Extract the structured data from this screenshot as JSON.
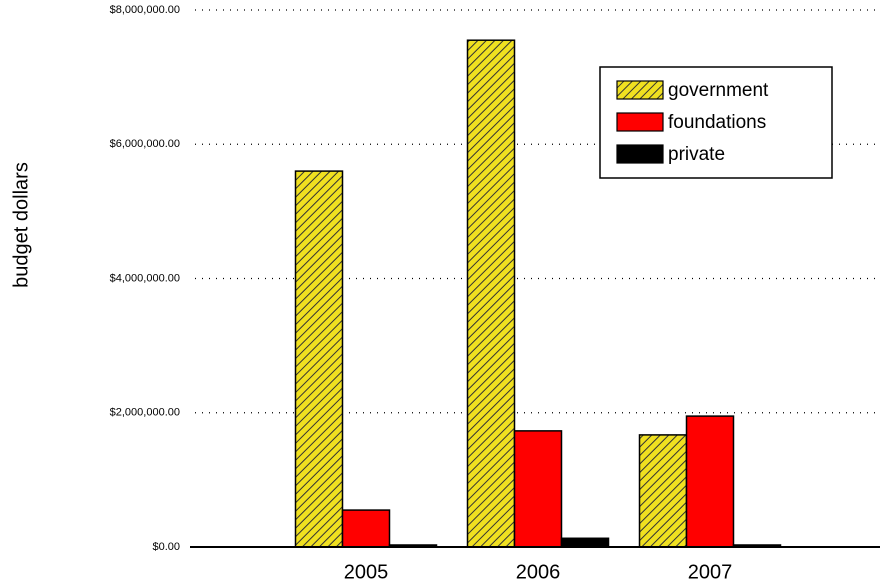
{
  "chart_data": {
    "type": "bar",
    "y_label": "budget dollars",
    "categories": [
      "2005",
      "2006",
      "2007"
    ],
    "series": [
      {
        "name": "government",
        "color": "#f0e020",
        "pattern": "hatch",
        "values": [
          5600000,
          7550000,
          1670000
        ]
      },
      {
        "name": "foundations",
        "color": "#ff0000",
        "values": [
          550000,
          1730000,
          1950000
        ]
      },
      {
        "name": "private",
        "color": "#000000",
        "values": [
          30000,
          130000,
          30000
        ]
      }
    ],
    "ylim": [
      0,
      8000000
    ],
    "yticks": [
      {
        "value": 0,
        "label": "$0.00"
      },
      {
        "value": 2000000,
        "label": "$2,000,000.00"
      },
      {
        "value": 4000000,
        "label": "$4,000,000.00"
      },
      {
        "value": 6000000,
        "label": "$6,000,000.00"
      },
      {
        "value": 8000000,
        "label": "$8,000,000.00"
      }
    ],
    "grid": true,
    "legend": "upper right"
  }
}
